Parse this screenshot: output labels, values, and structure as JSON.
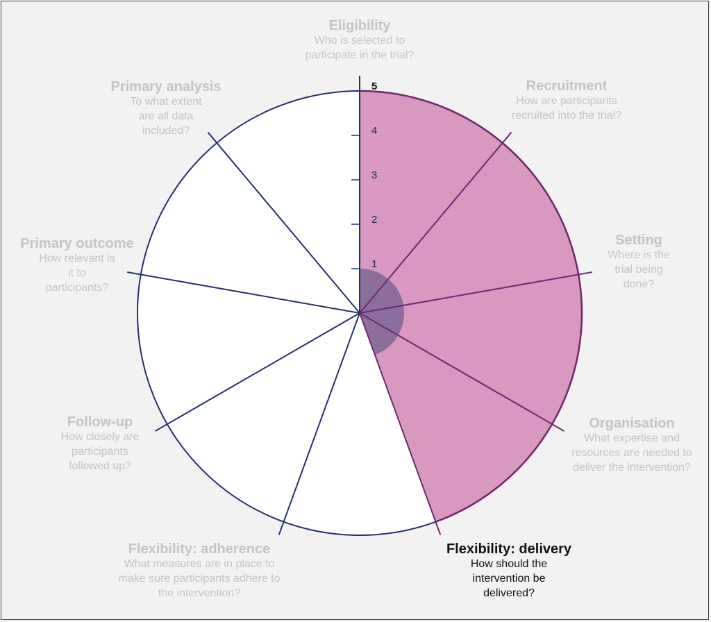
{
  "diagram": {
    "scale_ticks": [
      "1",
      "2",
      "3",
      "4",
      "5"
    ],
    "max_score": 5,
    "colors": {
      "background": "#f2f2f2",
      "outline": "#24306b",
      "highlight_fill": "#d898bf",
      "highlight_edge": "#6b2a6e",
      "score_fill": "#8c6d9c",
      "inactive_text": "#c4c4c4",
      "active_text": "#111111"
    },
    "domains": [
      {
        "id": "eligibility",
        "title": "Eligibility",
        "question": "Who is selected to participate in the trial?",
        "highlighted": true,
        "score": 1,
        "active": false
      },
      {
        "id": "recruitment",
        "title": "Recruitment",
        "question": "How are participants recruited into the trial?",
        "highlighted": true,
        "score": 1,
        "active": false
      },
      {
        "id": "setting",
        "title": "Setting",
        "question": "Where is the trial being done?",
        "highlighted": true,
        "score": 1,
        "active": false
      },
      {
        "id": "organisation",
        "title": "Organisation",
        "question": "What expertise and resources are needed to deliver the intervention?",
        "highlighted": true,
        "score": 1,
        "active": false
      },
      {
        "id": "flexibility-delivery",
        "title": "Flexibility: delivery",
        "question": "How should the intervention be delivered?",
        "highlighted": false,
        "score": 0,
        "active": true
      },
      {
        "id": "flexibility-adherence",
        "title": "Flexibility: adherence",
        "question": "What measures are in place to make sure participants adhere to the intervention?",
        "highlighted": false,
        "score": 0,
        "active": false
      },
      {
        "id": "follow-up",
        "title": "Follow-up",
        "question": "How closely are participants followed up?",
        "highlighted": false,
        "score": 0,
        "active": false
      },
      {
        "id": "primary-outcome",
        "title": "Primary outcome",
        "question": "How relevant is it to participants?",
        "highlighted": false,
        "score": 0,
        "active": false
      },
      {
        "id": "primary-analysis",
        "title": "Primary analysis",
        "question": "To what extent are all data included?",
        "highlighted": false,
        "score": 0,
        "active": false
      }
    ]
  }
}
